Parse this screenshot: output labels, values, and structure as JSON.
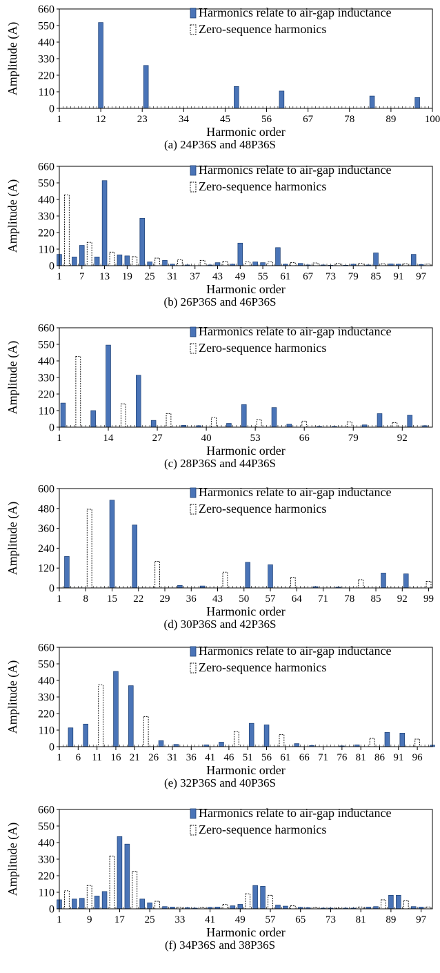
{
  "colors": {
    "harmonic": "#4a74b7",
    "harmonic_stroke": "#1c3f73",
    "zero_seq": "#ffffff",
    "zero_seq_stroke": "#000000"
  },
  "legend_labels": [
    "Harmonics relate to air-gap inductance",
    "Zero-sequence harmonics"
  ],
  "chart_data": [
    {
      "type": "bar",
      "caption": "(a) 24P36S and 48P36S",
      "xlabel": "Harmonic order",
      "ylabel": "Amplitude (A)",
      "xlim": [
        1,
        100
      ],
      "ylim": [
        0,
        660
      ],
      "xticks": [
        1,
        12,
        23,
        34,
        45,
        56,
        67,
        78,
        89,
        100
      ],
      "yticks": [
        0,
        110,
        220,
        330,
        440,
        550,
        660
      ],
      "legend": "top-right",
      "grid": false,
      "series": [
        {
          "name": "Harmonics relate to air-gap inductance",
          "x": [
            12,
            24,
            48,
            60,
            84,
            96
          ],
          "values": [
            570,
            285,
            145,
            115,
            82,
            72
          ]
        },
        {
          "name": "Zero-sequence harmonics",
          "x": [],
          "values": []
        }
      ]
    },
    {
      "type": "bar",
      "caption": "(b) 26P36S and 46P36S",
      "xlabel": "Harmonic order",
      "ylabel": "Amplitude (A)",
      "xlim": [
        1,
        100
      ],
      "ylim": [
        0,
        660
      ],
      "xticks": [
        1,
        7,
        13,
        19,
        25,
        31,
        37,
        43,
        49,
        55,
        61,
        67,
        73,
        79,
        85,
        91,
        97
      ],
      "yticks": [
        0,
        110,
        220,
        330,
        440,
        550,
        660
      ],
      "legend": "top-right",
      "grid": false,
      "series": [
        {
          "name": "Harmonics relate to air-gap inductance",
          "x": [
            1,
            5,
            7,
            11,
            13,
            17,
            19,
            23,
            25,
            29,
            31,
            35,
            41,
            43,
            47,
            49,
            53,
            55,
            59,
            61,
            65,
            67,
            71,
            73,
            77,
            79,
            83,
            85,
            89,
            91,
            95,
            97
          ],
          "values": [
            75,
            58,
            135,
            58,
            565,
            72,
            65,
            315,
            25,
            35,
            10,
            5,
            5,
            20,
            10,
            150,
            25,
            20,
            120,
            10,
            15,
            5,
            5,
            3,
            3,
            10,
            5,
            85,
            12,
            10,
            75,
            8
          ]
        },
        {
          "name": "Zero-sequence harmonics",
          "x": [
            3,
            9,
            15,
            21,
            27,
            33,
            39,
            45,
            51,
            57,
            63,
            69,
            75,
            81,
            87,
            93,
            99
          ],
          "values": [
            470,
            155,
            90,
            60,
            50,
            40,
            35,
            30,
            25,
            25,
            20,
            18,
            15,
            15,
            12,
            12,
            10
          ]
        }
      ]
    },
    {
      "type": "bar",
      "caption": "(c) 28P36S and 44P36S",
      "xlabel": "Harmonic order",
      "ylabel": "Amplitude (A)",
      "xlim": [
        1,
        100
      ],
      "ylim": [
        0,
        660
      ],
      "xticks": [
        1,
        14,
        27,
        40,
        53,
        66,
        79,
        92
      ],
      "yticks": [
        0,
        110,
        220,
        330,
        440,
        550,
        660
      ],
      "legend": "top-right",
      "grid": false,
      "series": [
        {
          "name": "Harmonics relate to air-gap inductance",
          "x": [
            2,
            10,
            14,
            22,
            26,
            34,
            38,
            46,
            50,
            58,
            62,
            70,
            74,
            82,
            86,
            94,
            98
          ],
          "values": [
            160,
            110,
            545,
            345,
            45,
            12,
            10,
            25,
            150,
            130,
            20,
            5,
            5,
            15,
            90,
            80,
            10
          ]
        },
        {
          "name": "Zero-sequence harmonics",
          "x": [
            6,
            18,
            30,
            42,
            54,
            66,
            78,
            90
          ],
          "values": [
            470,
            155,
            90,
            65,
            50,
            40,
            35,
            30
          ]
        }
      ]
    },
    {
      "type": "bar",
      "caption": "(d) 30P36S and 42P36S",
      "xlabel": "Harmonic order",
      "ylabel": "Amplitude (A)",
      "xlim": [
        1,
        100
      ],
      "ylim": [
        0,
        600
      ],
      "xticks": [
        1,
        8,
        15,
        22,
        29,
        36,
        43,
        50,
        57,
        64,
        71,
        78,
        85,
        92,
        99
      ],
      "yticks": [
        0,
        120,
        240,
        360,
        480,
        600
      ],
      "legend": "top-right",
      "grid": false,
      "series": [
        {
          "name": "Harmonics relate to air-gap inductance",
          "x": [
            3,
            15,
            21,
            33,
            39,
            51,
            57,
            69,
            75,
            87,
            93
          ],
          "values": [
            190,
            530,
            380,
            15,
            12,
            155,
            140,
            8,
            5,
            90,
            85
          ]
        },
        {
          "name": "Zero-sequence harmonics",
          "x": [
            9,
            27,
            45,
            63,
            81,
            99
          ],
          "values": [
            475,
            160,
            95,
            65,
            50,
            40
          ]
        }
      ]
    },
    {
      "type": "bar",
      "caption": "(e) 32P36S and 40P36S",
      "xlabel": "Harmonic order",
      "ylabel": "Amplitude (A)",
      "xlim": [
        1,
        100
      ],
      "ylim": [
        0,
        660
      ],
      "xticks": [
        1,
        6,
        11,
        16,
        21,
        26,
        31,
        36,
        41,
        46,
        51,
        56,
        61,
        66,
        71,
        76,
        81,
        86,
        91,
        96
      ],
      "yticks": [
        0,
        110,
        220,
        330,
        440,
        550,
        660
      ],
      "legend": "top-right",
      "grid": false,
      "series": [
        {
          "name": "Harmonics relate to air-gap inductance",
          "x": [
            4,
            8,
            16,
            20,
            28,
            32,
            40,
            44,
            52,
            56,
            64,
            68,
            76,
            80,
            88,
            92,
            100
          ],
          "values": [
            125,
            150,
            500,
            405,
            40,
            15,
            12,
            30,
            155,
            145,
            20,
            8,
            5,
            12,
            95,
            90,
            10
          ]
        },
        {
          "name": "Zero-sequence harmonics",
          "x": [
            12,
            24,
            48,
            60,
            84,
            96
          ],
          "values": [
            410,
            200,
            100,
            80,
            55,
            50
          ]
        }
      ]
    },
    {
      "type": "bar",
      "caption": "(f) 34P36S and 38P36S",
      "xlabel": "Harmonic order",
      "ylabel": "Amplitude (A)",
      "xlim": [
        1,
        100
      ],
      "ylim": [
        0,
        660
      ],
      "xticks": [
        1,
        9,
        17,
        25,
        33,
        41,
        49,
        57,
        65,
        73,
        81,
        89,
        97
      ],
      "yticks": [
        0,
        110,
        220,
        330,
        440,
        550,
        660
      ],
      "legend": "top-right",
      "grid": false,
      "series": [
        {
          "name": "Harmonics relate to air-gap inductance",
          "x": [
            1,
            5,
            7,
            11,
            13,
            17,
            19,
            23,
            25,
            29,
            31,
            35,
            37,
            41,
            43,
            47,
            49,
            53,
            55,
            59,
            61,
            65,
            67,
            71,
            73,
            77,
            79,
            83,
            85,
            89,
            91,
            95,
            97
          ],
          "values": [
            60,
            65,
            70,
            85,
            115,
            480,
            430,
            65,
            40,
            15,
            12,
            8,
            5,
            10,
            12,
            20,
            30,
            155,
            150,
            25,
            18,
            10,
            8,
            5,
            5,
            5,
            5,
            12,
            15,
            90,
            90,
            15,
            12
          ]
        },
        {
          "name": "Zero-sequence harmonics",
          "x": [
            3,
            9,
            15,
            21,
            27,
            33,
            39,
            45,
            51,
            57,
            63,
            69,
            75,
            81,
            87,
            93,
            99
          ],
          "values": [
            120,
            155,
            350,
            250,
            50,
            10,
            8,
            30,
            100,
            90,
            20,
            8,
            5,
            12,
            60,
            55,
            12
          ]
        }
      ]
    }
  ]
}
